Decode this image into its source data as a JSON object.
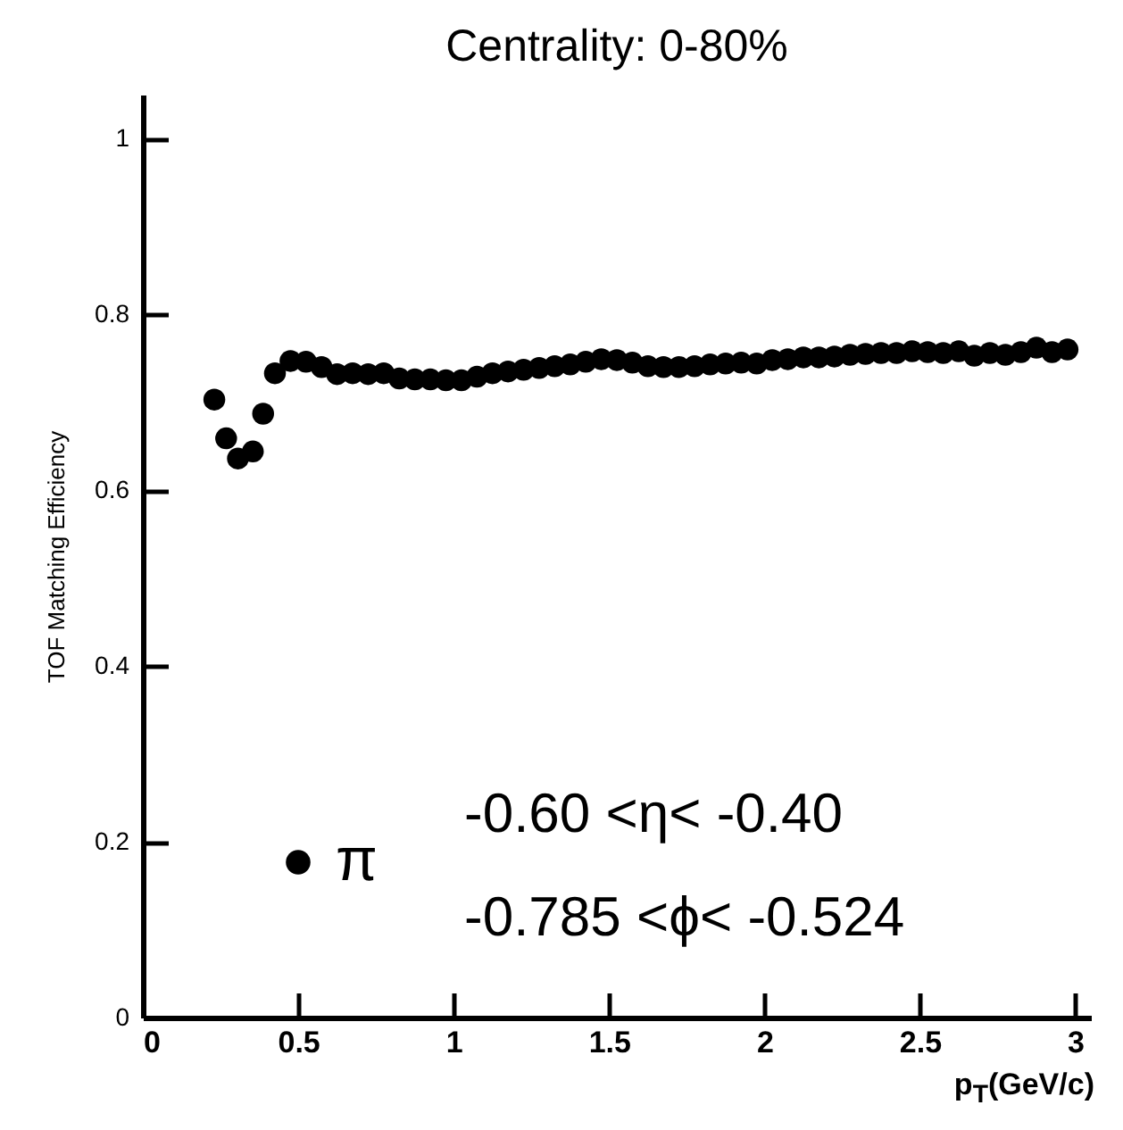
{
  "chart_data": {
    "type": "scatter",
    "title": "Centrality: 0-80%",
    "xlabel": "p$_{T}$(GeV/c)",
    "ylabel": "TOF Matching Efficiency",
    "annotations": [
      "-0.60 <η< -0.40",
      "-0.785 <ϕ< -0.524"
    ],
    "xlim": [
      0,
      3.05
    ],
    "ylim": [
      0,
      1.05
    ],
    "xticks": [
      0,
      0.5,
      1,
      1.5,
      2,
      2.5,
      3
    ],
    "yticks": [
      0,
      0.2,
      0.4,
      0.6,
      0.8,
      1
    ],
    "grid": false,
    "legend": "bottom left",
    "marker": "circle",
    "series": [
      {
        "name": "π",
        "color": "#000000",
        "x": [
          0.23,
          0.268,
          0.306,
          0.354,
          0.387,
          0.425,
          0.475,
          0.525,
          0.575,
          0.625,
          0.675,
          0.725,
          0.775,
          0.825,
          0.875,
          0.925,
          0.975,
          1.025,
          1.075,
          1.125,
          1.175,
          1.225,
          1.275,
          1.325,
          1.375,
          1.425,
          1.475,
          1.525,
          1.575,
          1.625,
          1.675,
          1.725,
          1.775,
          1.825,
          1.875,
          1.925,
          1.975,
          2.025,
          2.075,
          2.125,
          2.175,
          2.225,
          2.275,
          2.325,
          2.375,
          2.425,
          2.475,
          2.525,
          2.575,
          2.625,
          2.675,
          2.725,
          2.775,
          2.825,
          2.875,
          2.925,
          2.975
        ],
        "values": [
          0.703,
          0.659,
          0.636,
          0.644,
          0.687,
          0.733,
          0.747,
          0.746,
          0.74,
          0.732,
          0.733,
          0.732,
          0.733,
          0.727,
          0.726,
          0.726,
          0.725,
          0.725,
          0.729,
          0.733,
          0.735,
          0.737,
          0.739,
          0.741,
          0.743,
          0.746,
          0.749,
          0.748,
          0.745,
          0.741,
          0.74,
          0.74,
          0.741,
          0.743,
          0.744,
          0.745,
          0.744,
          0.748,
          0.749,
          0.751,
          0.751,
          0.752,
          0.754,
          0.755,
          0.756,
          0.756,
          0.758,
          0.757,
          0.756,
          0.758,
          0.753,
          0.756,
          0.754,
          0.757,
          0.762,
          0.757,
          0.76
        ]
      }
    ]
  }
}
